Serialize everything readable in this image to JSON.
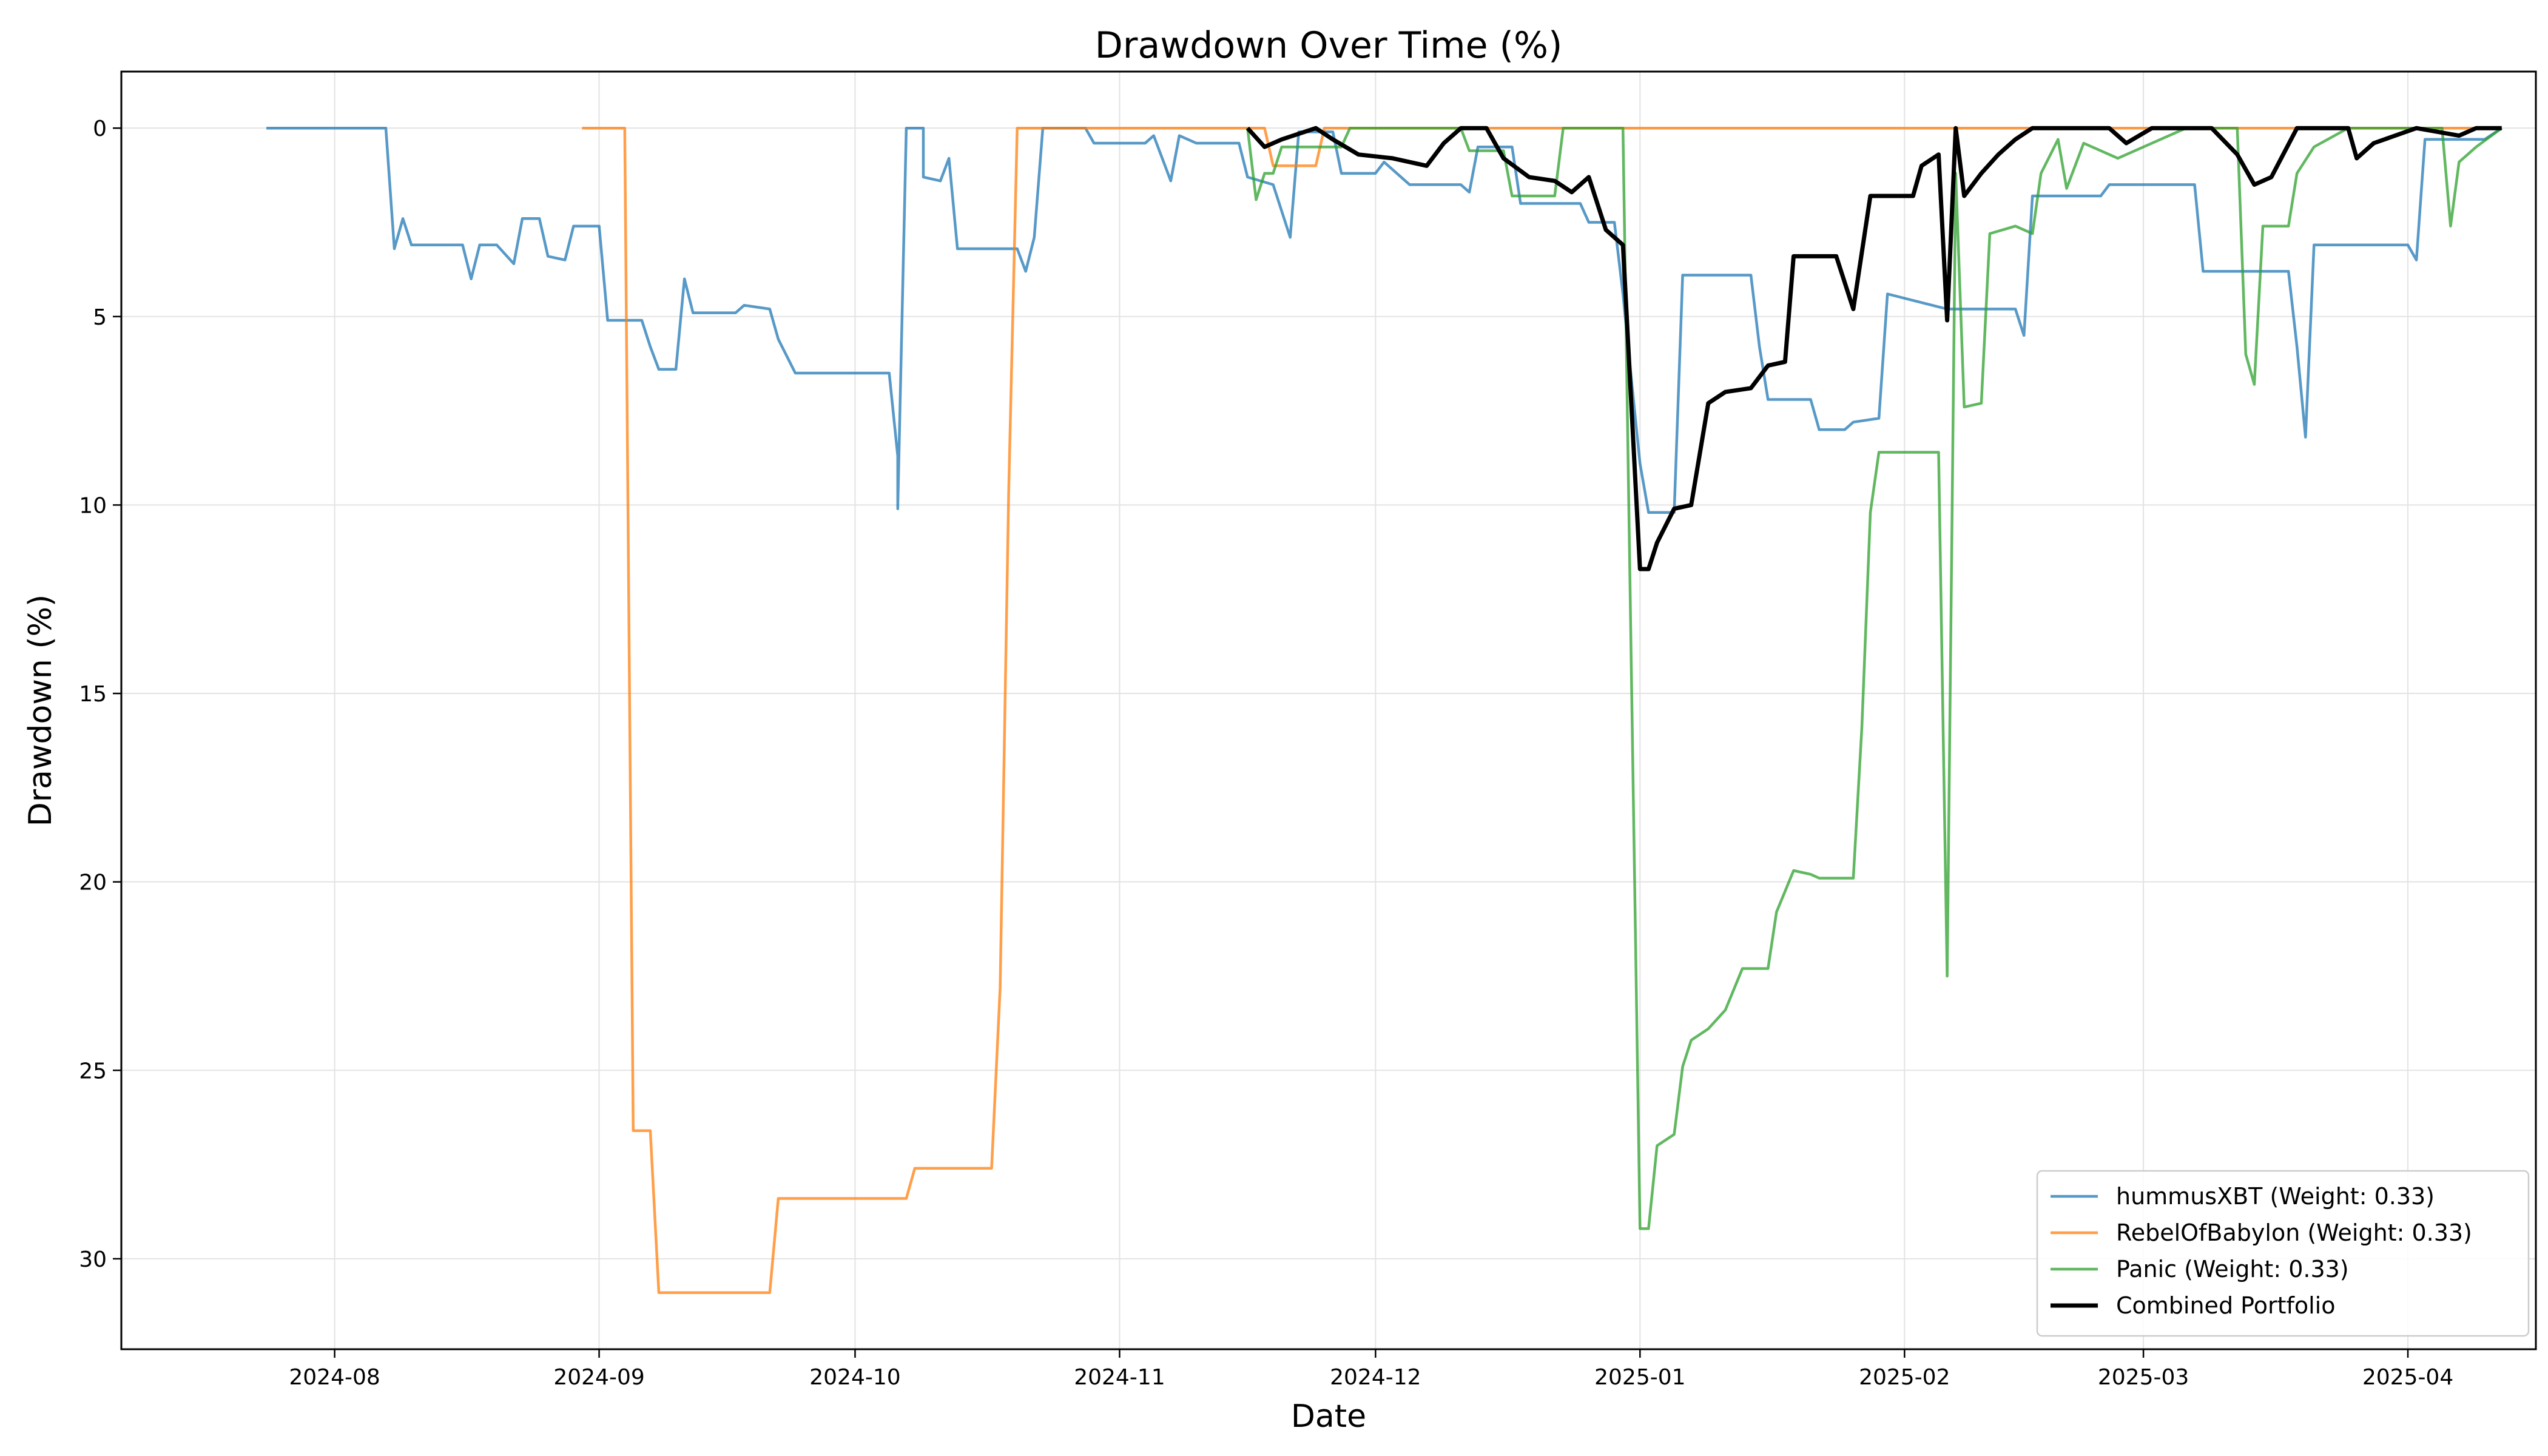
{
  "chart_data": {
    "type": "line",
    "title": "Drawdown Over Time (%)",
    "xlabel": "Date",
    "ylabel": "Drawdown (%)",
    "y_inverted": true,
    "ylim": [
      32.4,
      -1.5
    ],
    "xlim": [
      "2024-07-07",
      "2025-04-16"
    ],
    "grid": true,
    "legend_position": "lower-right",
    "x_ticks": [
      "2024-08",
      "2024-09",
      "2024-10",
      "2024-11",
      "2024-12",
      "2025-01",
      "2025-02",
      "2025-03",
      "2025-04"
    ],
    "y_ticks": [
      0,
      5,
      10,
      15,
      20,
      25,
      30
    ],
    "series": [
      {
        "name": "hummusXBT (Weight: 0.33)",
        "color": "#1f77b4",
        "points": [
          [
            "2024-07-24",
            0
          ],
          [
            "2024-08-07",
            0
          ],
          [
            "2024-08-08",
            3.2
          ],
          [
            "2024-08-09",
            2.4
          ],
          [
            "2024-08-10",
            3.1
          ],
          [
            "2024-08-16",
            3.1
          ],
          [
            "2024-08-17",
            4
          ],
          [
            "2024-08-18",
            3.1
          ],
          [
            "2024-08-20",
            3.1
          ],
          [
            "2024-08-22",
            3.6
          ],
          [
            "2024-08-23",
            2.4
          ],
          [
            "2024-08-25",
            2.4
          ],
          [
            "2024-08-26",
            3.4
          ],
          [
            "2024-08-28",
            3.5
          ],
          [
            "2024-08-29",
            2.6
          ],
          [
            "2024-09-01",
            2.6
          ],
          [
            "2024-09-02",
            5.1
          ],
          [
            "2024-09-06",
            5.1
          ],
          [
            "2024-09-07",
            5.8
          ],
          [
            "2024-09-08",
            6.4
          ],
          [
            "2024-09-10",
            6.4
          ],
          [
            "2024-09-11",
            4
          ],
          [
            "2024-09-12",
            4.9
          ],
          [
            "2024-09-17",
            4.9
          ],
          [
            "2024-09-18",
            4.7
          ],
          [
            "2024-09-21",
            4.8
          ],
          [
            "2024-09-22",
            5.6
          ],
          [
            "2024-09-24",
            6.5
          ],
          [
            "2024-10-05",
            6.5
          ],
          [
            "2024-10-06",
            8.7
          ],
          [
            "2024-10-06",
            10.1
          ],
          [
            "2024-10-07",
            0
          ],
          [
            "2024-10-09",
            0
          ],
          [
            "2024-10-09",
            1.3
          ],
          [
            "2024-10-11",
            1.4
          ],
          [
            "2024-10-12",
            0.8
          ],
          [
            "2024-10-13",
            3.2
          ],
          [
            "2024-10-20",
            3.2
          ],
          [
            "2024-10-21",
            3.8
          ],
          [
            "2024-10-22",
            2.9
          ],
          [
            "2024-10-23",
            0
          ],
          [
            "2024-10-28",
            0
          ],
          [
            "2024-10-29",
            0.4
          ],
          [
            "2024-11-04",
            0.4
          ],
          [
            "2024-11-05",
            0.2
          ],
          [
            "2024-11-07",
            1.4
          ],
          [
            "2024-11-08",
            0.2
          ],
          [
            "2024-11-10",
            0.4
          ],
          [
            "2024-11-15",
            0.4
          ],
          [
            "2024-11-16",
            1.3
          ],
          [
            "2024-11-19",
            1.5
          ],
          [
            "2024-11-21",
            2.9
          ],
          [
            "2024-11-22",
            0.1
          ],
          [
            "2024-11-26",
            0.1
          ],
          [
            "2024-11-27",
            1.2
          ],
          [
            "2024-12-01",
            1.2
          ],
          [
            "2024-12-02",
            0.9
          ],
          [
            "2024-12-05",
            1.5
          ],
          [
            "2024-12-11",
            1.5
          ],
          [
            "2024-12-12",
            1.7
          ],
          [
            "2024-12-13",
            0.5
          ],
          [
            "2024-12-17",
            0.5
          ],
          [
            "2024-12-18",
            2
          ],
          [
            "2024-12-25",
            2
          ],
          [
            "2024-12-26",
            2.5
          ],
          [
            "2024-12-29",
            2.5
          ],
          [
            "2024-12-30",
            4.4
          ],
          [
            "2024-12-31",
            6.7
          ],
          [
            "2025-01-01",
            8.9
          ],
          [
            "2025-01-02",
            10.2
          ],
          [
            "2025-01-05",
            10.2
          ],
          [
            "2025-01-06",
            3.9
          ],
          [
            "2025-01-14",
            3.9
          ],
          [
            "2025-01-15",
            5.8
          ],
          [
            "2025-01-16",
            7.2
          ],
          [
            "2025-01-21",
            7.2
          ],
          [
            "2025-01-22",
            8
          ],
          [
            "2025-01-25",
            8
          ],
          [
            "2025-01-26",
            7.8
          ],
          [
            "2025-01-29",
            7.7
          ],
          [
            "2025-01-30",
            4.4
          ],
          [
            "2025-02-06",
            4.8
          ],
          [
            "2025-02-14",
            4.8
          ],
          [
            "2025-02-15",
            5.5
          ],
          [
            "2025-02-16",
            1.8
          ],
          [
            "2025-02-24",
            1.8
          ],
          [
            "2025-02-25",
            1.5
          ],
          [
            "2025-03-07",
            1.5
          ],
          [
            "2025-03-08",
            3.8
          ],
          [
            "2025-03-18",
            3.8
          ],
          [
            "2025-03-19",
            5.8
          ],
          [
            "2025-03-20",
            8.2
          ],
          [
            "2025-03-21",
            3.1
          ],
          [
            "2025-04-01",
            3.1
          ],
          [
            "2025-04-02",
            3.5
          ],
          [
            "2025-04-03",
            0.3
          ],
          [
            "2025-04-10",
            0.3
          ],
          [
            "2025-04-12",
            0
          ]
        ]
      },
      {
        "name": "RebelOfBabylon (Weight: 0.33)",
        "color": "#ff7f0e",
        "points": [
          [
            "2024-08-30",
            0
          ],
          [
            "2024-09-04",
            0
          ],
          [
            "2024-09-05",
            26.6
          ],
          [
            "2024-09-07",
            26.6
          ],
          [
            "2024-09-08",
            30.9
          ],
          [
            "2024-09-21",
            30.9
          ],
          [
            "2024-09-22",
            28.4
          ],
          [
            "2024-10-07",
            28.4
          ],
          [
            "2024-10-08",
            27.6
          ],
          [
            "2024-10-17",
            27.6
          ],
          [
            "2024-10-18",
            22.8
          ],
          [
            "2024-10-19",
            9.7
          ],
          [
            "2024-10-20",
            0
          ],
          [
            "2024-11-18",
            0
          ],
          [
            "2024-11-19",
            1
          ],
          [
            "2024-11-24",
            1
          ],
          [
            "2024-11-25",
            0
          ],
          [
            "2025-04-12",
            0
          ]
        ]
      },
      {
        "name": "Panic (Weight: 0.33)",
        "color": "#2ca02c",
        "points": [
          [
            "2024-11-16",
            0
          ],
          [
            "2024-11-17",
            1.9
          ],
          [
            "2024-11-18",
            1.2
          ],
          [
            "2024-11-19",
            1.2
          ],
          [
            "2024-11-20",
            0.5
          ],
          [
            "2024-11-27",
            0.5
          ],
          [
            "2024-11-28",
            0
          ],
          [
            "2024-12-11",
            0
          ],
          [
            "2024-12-12",
            0.6
          ],
          [
            "2024-12-16",
            0.6
          ],
          [
            "2024-12-17",
            1.8
          ],
          [
            "2024-12-22",
            1.8
          ],
          [
            "2024-12-23",
            0
          ],
          [
            "2024-12-30",
            0
          ],
          [
            "2025-01-01",
            29.2
          ],
          [
            "2025-01-02",
            29.2
          ],
          [
            "2025-01-03",
            27
          ],
          [
            "2025-01-05",
            26.7
          ],
          [
            "2025-01-06",
            24.9
          ],
          [
            "2025-01-07",
            24.2
          ],
          [
            "2025-01-09",
            23.9
          ],
          [
            "2025-01-11",
            23.4
          ],
          [
            "2025-01-13",
            22.3
          ],
          [
            "2025-01-16",
            22.3
          ],
          [
            "2025-01-17",
            20.8
          ],
          [
            "2025-01-19",
            19.7
          ],
          [
            "2025-01-21",
            19.8
          ],
          [
            "2025-01-22",
            19.9
          ],
          [
            "2025-01-26",
            19.9
          ],
          [
            "2025-01-27",
            15.9
          ],
          [
            "2025-01-28",
            10.2
          ],
          [
            "2025-01-29",
            8.6
          ],
          [
            "2025-02-05",
            8.6
          ],
          [
            "2025-02-06",
            22.5
          ],
          [
            "2025-02-07",
            1.2
          ],
          [
            "2025-02-08",
            7.4
          ],
          [
            "2025-02-10",
            7.3
          ],
          [
            "2025-02-11",
            2.8
          ],
          [
            "2025-02-14",
            2.6
          ],
          [
            "2025-02-16",
            2.8
          ],
          [
            "2025-02-17",
            1.2
          ],
          [
            "2025-02-19",
            0.3
          ],
          [
            "2025-02-20",
            1.6
          ],
          [
            "2025-02-22",
            0.4
          ],
          [
            "2025-02-26",
            0.8
          ],
          [
            "2025-03-03",
            0.3
          ],
          [
            "2025-03-06",
            0
          ],
          [
            "2025-03-12",
            0
          ],
          [
            "2025-03-13",
            6
          ],
          [
            "2025-03-14",
            6.8
          ],
          [
            "2025-03-15",
            2.6
          ],
          [
            "2025-03-18",
            2.6
          ],
          [
            "2025-03-19",
            1.2
          ],
          [
            "2025-03-21",
            0.5
          ],
          [
            "2025-03-25",
            0
          ],
          [
            "2025-04-05",
            0
          ],
          [
            "2025-04-06",
            2.6
          ],
          [
            "2025-04-07",
            0.9
          ],
          [
            "2025-04-09",
            0.5
          ],
          [
            "2025-04-12",
            0
          ]
        ]
      },
      {
        "name": "Combined Portfolio",
        "color": "#000000",
        "points": [
          [
            "2024-11-16",
            0
          ],
          [
            "2024-11-18",
            0.5
          ],
          [
            "2024-11-20",
            0.3
          ],
          [
            "2024-11-24",
            0
          ],
          [
            "2024-11-26",
            0.3
          ],
          [
            "2024-11-29",
            0.7
          ],
          [
            "2024-12-03",
            0.8
          ],
          [
            "2024-12-07",
            1
          ],
          [
            "2024-12-09",
            0.4
          ],
          [
            "2024-12-11",
            0
          ],
          [
            "2024-12-14",
            0
          ],
          [
            "2024-12-16",
            0.8
          ],
          [
            "2024-12-19",
            1.3
          ],
          [
            "2024-12-22",
            1.4
          ],
          [
            "2024-12-24",
            1.7
          ],
          [
            "2024-12-26",
            1.3
          ],
          [
            "2024-12-28",
            2.7
          ],
          [
            "2024-12-30",
            3.1
          ],
          [
            "2025-01-01",
            11.7
          ],
          [
            "2025-01-02",
            11.7
          ],
          [
            "2025-01-03",
            11
          ],
          [
            "2025-01-05",
            10.1
          ],
          [
            "2025-01-07",
            10
          ],
          [
            "2025-01-09",
            7.3
          ],
          [
            "2025-01-11",
            7
          ],
          [
            "2025-01-14",
            6.9
          ],
          [
            "2025-01-16",
            6.3
          ],
          [
            "2025-01-18",
            6.2
          ],
          [
            "2025-01-19",
            3.4
          ],
          [
            "2025-01-24",
            3.4
          ],
          [
            "2025-01-26",
            4.8
          ],
          [
            "2025-01-28",
            1.8
          ],
          [
            "2025-02-02",
            1.8
          ],
          [
            "2025-02-03",
            1
          ],
          [
            "2025-02-05",
            0.7
          ],
          [
            "2025-02-06",
            5.1
          ],
          [
            "2025-02-07",
            0
          ],
          [
            "2025-02-08",
            1.8
          ],
          [
            "2025-02-10",
            1.2
          ],
          [
            "2025-02-12",
            0.7
          ],
          [
            "2025-02-14",
            0.3
          ],
          [
            "2025-02-16",
            0
          ],
          [
            "2025-02-25",
            0
          ],
          [
            "2025-02-27",
            0.4
          ],
          [
            "2025-03-02",
            0
          ],
          [
            "2025-03-09",
            0
          ],
          [
            "2025-03-12",
            0.7
          ],
          [
            "2025-03-14",
            1.5
          ],
          [
            "2025-03-16",
            1.3
          ],
          [
            "2025-03-19",
            0
          ],
          [
            "2025-03-25",
            0
          ],
          [
            "2025-03-26",
            0.8
          ],
          [
            "2025-03-28",
            0.4
          ],
          [
            "2025-04-02",
            0
          ],
          [
            "2025-04-07",
            0.2
          ],
          [
            "2025-04-09",
            0
          ],
          [
            "2025-04-12",
            0
          ]
        ]
      }
    ]
  }
}
